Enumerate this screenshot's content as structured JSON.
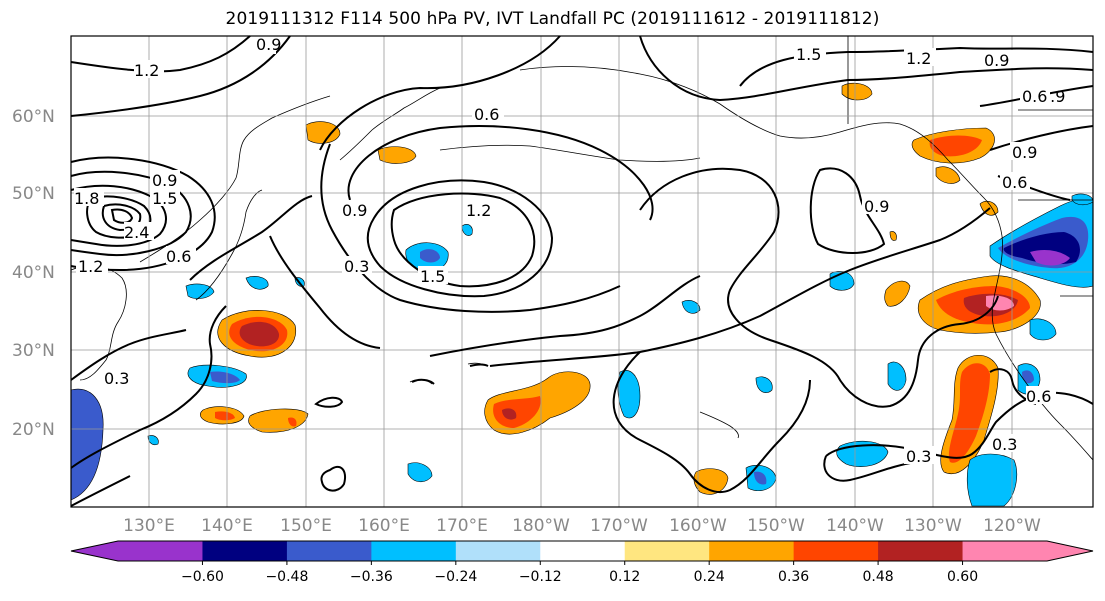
{
  "title": "2019111312 F114 500 hPa PV, IVT Landfall PC (2019111612 - 2019111812)",
  "axes": {
    "lat_labels": [
      "60°N",
      "50°N",
      "40°N",
      "30°N",
      "20°N"
    ],
    "lon_labels": [
      "130°E",
      "140°E",
      "150°E",
      "160°E",
      "170°E",
      "180°W",
      "170°W",
      "160°W",
      "150°W",
      "140°W",
      "130°W",
      "120°W"
    ]
  },
  "contour_labels": [
    "1.2",
    "0.9",
    "0.6",
    "1.5",
    "1.2",
    "0.9",
    "0.9",
    "0.6",
    "1.8",
    "0.9",
    "1.5",
    "2.4",
    "0.6",
    "1.2",
    "0.9",
    "1.2",
    "0.3",
    "1.5",
    "0.9",
    "0.9",
    "0.6",
    "0.3",
    "0.3",
    "0.3",
    "0.6"
  ],
  "colorbar": {
    "ticks": [
      "−0.60",
      "−0.48",
      "−0.36",
      "−0.24",
      "−0.12",
      "0.12",
      "0.24",
      "0.36",
      "0.48",
      "0.60"
    ],
    "colors": [
      "#9933cc",
      "#000080",
      "#3a5bcc",
      "#00bfff",
      "#b0e0fa",
      "#ffffff",
      "#ffe680",
      "#ffa500",
      "#ff4500",
      "#b22222",
      "#ff85b0"
    ]
  }
}
